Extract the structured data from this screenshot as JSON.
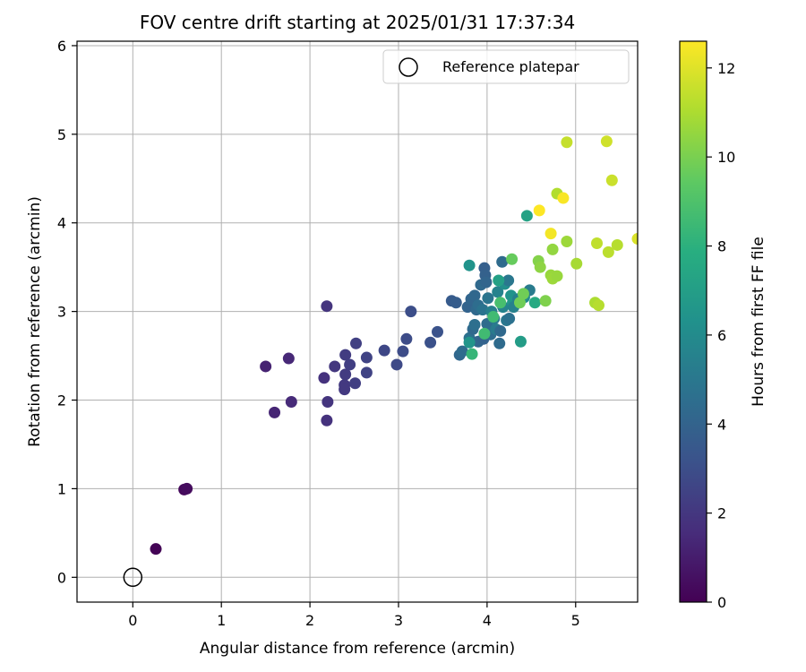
{
  "chart_data": {
    "type": "scatter",
    "title": "FOV centre drift starting at 2025/01/31 17:37:34",
    "xlabel": "Angular distance from reference (arcmin)",
    "ylabel": "Rotation from reference (arcmin)",
    "xlim": [
      -0.63,
      5.7
    ],
    "ylim": [
      -0.28,
      6.05
    ],
    "x_ticks": [
      "0",
      "1",
      "2",
      "3",
      "4",
      "5"
    ],
    "y_ticks": [
      "0",
      "1",
      "2",
      "3",
      "4",
      "5",
      "6"
    ],
    "grid": true,
    "legend": {
      "position": "top-right",
      "entries": [
        "Reference platepar"
      ]
    },
    "reference_point": {
      "x": 0,
      "y": 0
    },
    "colorbar": {
      "label": "Hours from first FF file",
      "range": [
        0,
        12.6
      ],
      "ticks": [
        "0",
        "2",
        "4",
        "6",
        "8",
        "10",
        "12"
      ],
      "colormap": "viridis"
    },
    "points": [
      {
        "x": 0.26,
        "y": 0.32,
        "h": 0.1
      },
      {
        "x": 0.58,
        "y": 0.99,
        "h": 0.3
      },
      {
        "x": 0.61,
        "y": 1.0,
        "h": 0.4
      },
      {
        "x": 1.5,
        "y": 2.38,
        "h": 1.2
      },
      {
        "x": 1.6,
        "y": 1.86,
        "h": 1.3
      },
      {
        "x": 1.76,
        "y": 2.47,
        "h": 1.4
      },
      {
        "x": 1.79,
        "y": 1.98,
        "h": 1.5
      },
      {
        "x": 2.16,
        "y": 2.25,
        "h": 1.8
      },
      {
        "x": 2.19,
        "y": 1.77,
        "h": 1.8
      },
      {
        "x": 2.2,
        "y": 1.98,
        "h": 1.9
      },
      {
        "x": 2.19,
        "y": 3.06,
        "h": 1.9
      },
      {
        "x": 2.28,
        "y": 2.38,
        "h": 2.0
      },
      {
        "x": 2.39,
        "y": 2.17,
        "h": 2.1
      },
      {
        "x": 2.39,
        "y": 2.12,
        "h": 2.1
      },
      {
        "x": 2.4,
        "y": 2.29,
        "h": 2.2
      },
      {
        "x": 2.4,
        "y": 2.51,
        "h": 2.2
      },
      {
        "x": 2.45,
        "y": 2.4,
        "h": 2.3
      },
      {
        "x": 2.51,
        "y": 2.19,
        "h": 2.3
      },
      {
        "x": 2.52,
        "y": 2.64,
        "h": 2.4
      },
      {
        "x": 2.64,
        "y": 2.31,
        "h": 2.5
      },
      {
        "x": 2.64,
        "y": 2.48,
        "h": 2.5
      },
      {
        "x": 2.84,
        "y": 2.56,
        "h": 2.7
      },
      {
        "x": 2.98,
        "y": 2.4,
        "h": 2.8
      },
      {
        "x": 3.05,
        "y": 2.55,
        "h": 2.9
      },
      {
        "x": 3.09,
        "y": 2.69,
        "h": 2.9
      },
      {
        "x": 3.14,
        "y": 3.0,
        "h": 3.0
      },
      {
        "x": 3.36,
        "y": 2.65,
        "h": 3.1
      },
      {
        "x": 3.44,
        "y": 2.77,
        "h": 3.2
      },
      {
        "x": 3.6,
        "y": 3.12,
        "h": 3.6
      },
      {
        "x": 3.65,
        "y": 3.1,
        "h": 3.7
      },
      {
        "x": 3.69,
        "y": 2.51,
        "h": 4.2
      },
      {
        "x": 3.72,
        "y": 2.55,
        "h": 4.4
      },
      {
        "x": 3.78,
        "y": 3.05,
        "h": 4.0
      },
      {
        "x": 3.8,
        "y": 2.7,
        "h": 4.7
      },
      {
        "x": 3.82,
        "y": 3.14,
        "h": 4.1
      },
      {
        "x": 3.84,
        "y": 2.8,
        "h": 4.3
      },
      {
        "x": 3.86,
        "y": 3.18,
        "h": 4.2
      },
      {
        "x": 3.86,
        "y": 2.85,
        "h": 4.6
      },
      {
        "x": 3.88,
        "y": 3.02,
        "h": 4.3
      },
      {
        "x": 3.9,
        "y": 2.66,
        "h": 4.2
      },
      {
        "x": 3.9,
        "y": 3.07,
        "h": 4.5
      },
      {
        "x": 3.93,
        "y": 3.3,
        "h": 4.3
      },
      {
        "x": 3.95,
        "y": 3.02,
        "h": 4.8
      },
      {
        "x": 3.96,
        "y": 2.69,
        "h": 4.0
      },
      {
        "x": 3.97,
        "y": 3.49,
        "h": 3.8
      },
      {
        "x": 3.98,
        "y": 3.41,
        "h": 3.9
      },
      {
        "x": 3.99,
        "y": 3.33,
        "h": 4.1
      },
      {
        "x": 4.0,
        "y": 2.86,
        "h": 4.4
      },
      {
        "x": 4.01,
        "y": 3.15,
        "h": 4.9
      },
      {
        "x": 4.04,
        "y": 2.74,
        "h": 4.5
      },
      {
        "x": 4.05,
        "y": 3.0,
        "h": 5.4
      },
      {
        "x": 4.08,
        "y": 2.92,
        "h": 5.0
      },
      {
        "x": 4.1,
        "y": 2.8,
        "h": 5.2
      },
      {
        "x": 4.12,
        "y": 3.22,
        "h": 5.6
      },
      {
        "x": 4.14,
        "y": 2.64,
        "h": 4.4
      },
      {
        "x": 4.15,
        "y": 2.78,
        "h": 4.3
      },
      {
        "x": 4.17,
        "y": 3.56,
        "h": 4.4
      },
      {
        "x": 4.18,
        "y": 3.05,
        "h": 5.6
      },
      {
        "x": 4.2,
        "y": 3.31,
        "h": 6.2
      },
      {
        "x": 4.22,
        "y": 2.9,
        "h": 5.0
      },
      {
        "x": 4.24,
        "y": 3.35,
        "h": 5.0
      },
      {
        "x": 4.25,
        "y": 2.92,
        "h": 4.7
      },
      {
        "x": 4.27,
        "y": 3.18,
        "h": 6.4
      },
      {
        "x": 4.29,
        "y": 3.1,
        "h": 6.5
      },
      {
        "x": 4.3,
        "y": 3.05,
        "h": 5.5
      },
      {
        "x": 4.35,
        "y": 3.14,
        "h": 5.4
      },
      {
        "x": 4.42,
        "y": 3.16,
        "h": 6.0
      },
      {
        "x": 4.48,
        "y": 3.24,
        "h": 5.2
      },
      {
        "x": 3.8,
        "y": 3.52,
        "h": 6.4
      },
      {
        "x": 3.8,
        "y": 2.65,
        "h": 6.5
      },
      {
        "x": 3.83,
        "y": 2.52,
        "h": 8.3
      },
      {
        "x": 3.97,
        "y": 2.75,
        "h": 8.6
      },
      {
        "x": 4.07,
        "y": 2.94,
        "h": 8.6
      },
      {
        "x": 4.13,
        "y": 3.35,
        "h": 7.1
      },
      {
        "x": 4.15,
        "y": 3.1,
        "h": 8.8
      },
      {
        "x": 4.38,
        "y": 2.66,
        "h": 6.9
      },
      {
        "x": 4.45,
        "y": 4.08,
        "h": 7.2
      },
      {
        "x": 4.54,
        "y": 3.1,
        "h": 7.6
      },
      {
        "x": 4.28,
        "y": 3.59,
        "h": 9.6
      },
      {
        "x": 4.37,
        "y": 3.1,
        "h": 9.8
      },
      {
        "x": 4.41,
        "y": 3.2,
        "h": 9.8
      },
      {
        "x": 4.58,
        "y": 3.57,
        "h": 10.2
      },
      {
        "x": 4.6,
        "y": 3.5,
        "h": 10.4
      },
      {
        "x": 4.66,
        "y": 3.12,
        "h": 10.1
      },
      {
        "x": 4.72,
        "y": 3.41,
        "h": 10.6
      },
      {
        "x": 4.74,
        "y": 3.37,
        "h": 10.7
      },
      {
        "x": 4.74,
        "y": 3.7,
        "h": 10.5
      },
      {
        "x": 4.79,
        "y": 3.4,
        "h": 10.6
      },
      {
        "x": 4.9,
        "y": 3.79,
        "h": 10.7
      },
      {
        "x": 5.01,
        "y": 3.54,
        "h": 10.9
      },
      {
        "x": 4.79,
        "y": 4.33,
        "h": 11.1
      },
      {
        "x": 5.22,
        "y": 3.1,
        "h": 11.0
      },
      {
        "x": 5.26,
        "y": 3.07,
        "h": 11.2
      },
      {
        "x": 5.24,
        "y": 3.77,
        "h": 11.4
      },
      {
        "x": 5.37,
        "y": 3.67,
        "h": 11.3
      },
      {
        "x": 5.47,
        "y": 3.75,
        "h": 11.2
      },
      {
        "x": 5.41,
        "y": 4.48,
        "h": 11.6
      },
      {
        "x": 5.7,
        "y": 3.82,
        "h": 11.9
      },
      {
        "x": 4.9,
        "y": 4.91,
        "h": 11.5
      },
      {
        "x": 5.35,
        "y": 4.92,
        "h": 11.7
      },
      {
        "x": 4.72,
        "y": 3.88,
        "h": 12.4
      },
      {
        "x": 4.86,
        "y": 4.28,
        "h": 12.5
      },
      {
        "x": 4.59,
        "y": 4.14,
        "h": 12.6
      }
    ]
  }
}
